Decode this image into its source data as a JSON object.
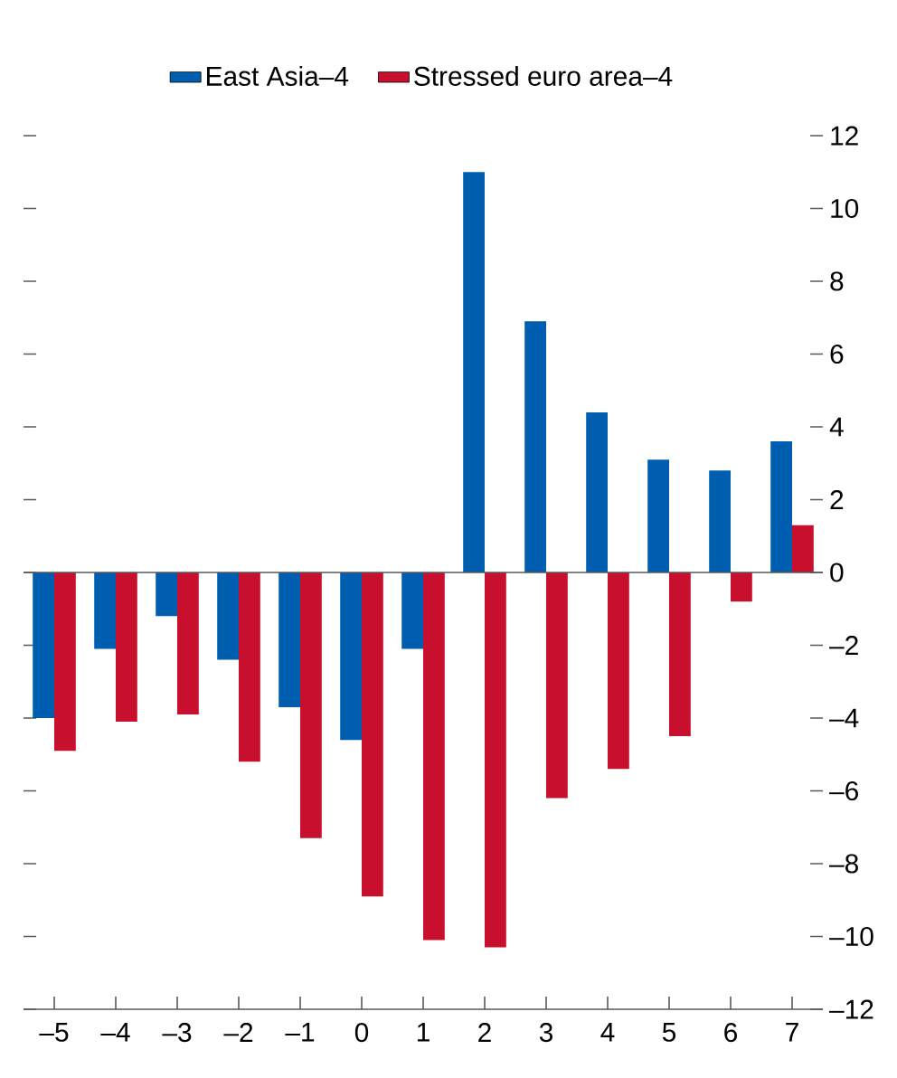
{
  "chart_data": {
    "type": "bar",
    "categories": [
      "–5",
      "–4",
      "–3",
      "–2",
      "–1",
      "0",
      "1",
      "2",
      "3",
      "4",
      "5",
      "6",
      "7"
    ],
    "series": [
      {
        "name": "East Asia–4",
        "color": "#005eb0",
        "values": [
          -4.0,
          -2.1,
          -1.2,
          -2.4,
          -3.7,
          -4.6,
          -2.1,
          11.0,
          6.9,
          4.4,
          3.1,
          2.8,
          3.6
        ]
      },
      {
        "name": "Stressed euro area–4",
        "color": "#c8102e",
        "values": [
          -4.9,
          -4.1,
          -3.9,
          -5.2,
          -7.3,
          -8.9,
          -10.1,
          -10.3,
          -6.2,
          -5.4,
          -4.5,
          -0.8,
          1.3
        ]
      }
    ],
    "ylim": [
      -12,
      12
    ],
    "yticks": [
      {
        "value": -12,
        "label": "–12"
      },
      {
        "value": -10,
        "label": "–10"
      },
      {
        "value": -8,
        "label": "–8"
      },
      {
        "value": -6,
        "label": "–6"
      },
      {
        "value": -4,
        "label": "–4"
      },
      {
        "value": -2,
        "label": "–2"
      },
      0,
      2,
      4,
      6,
      8,
      10,
      12
    ],
    "ref_lines": [
      {
        "axis": "y",
        "value": 0
      }
    ],
    "legend": "top",
    "grid": false
  }
}
